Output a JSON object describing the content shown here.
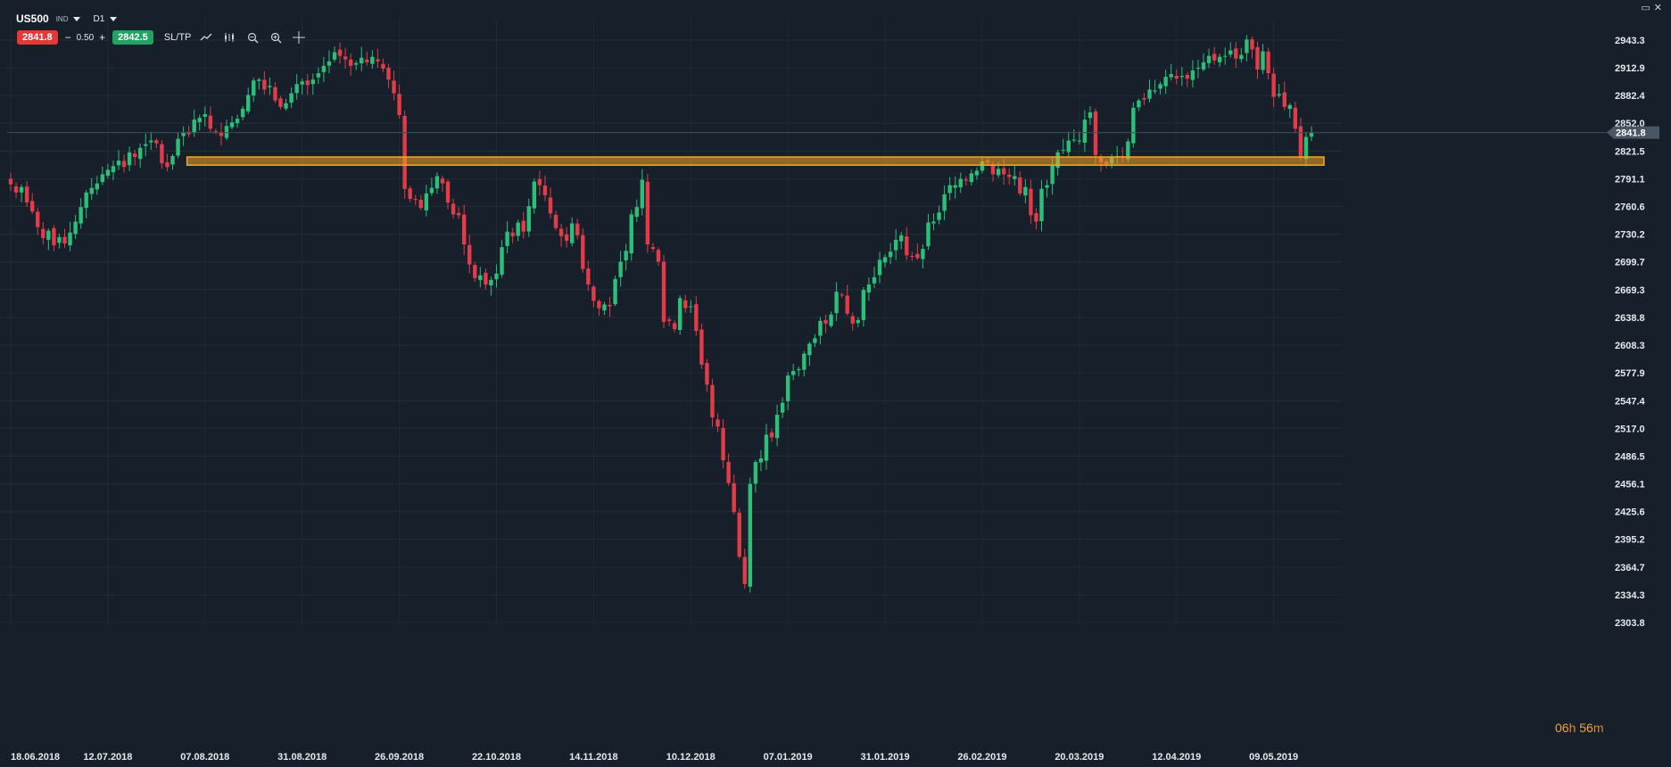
{
  "toolbar": {
    "symbol": "US500",
    "instrument_type": "IND",
    "timeframe": "D1",
    "sell_price": "2841.8",
    "spread_minus": "−",
    "spread": "0.50",
    "spread_plus": "+",
    "buy_price": "2842.5",
    "sltp_label": "SL/TP"
  },
  "colors": {
    "background": "#17202a",
    "bull": "#2bbf7a",
    "bear": "#e23b4a",
    "support_zone": "#f5a623",
    "price_label_bg": "#4a5663",
    "sell": "#e53935",
    "buy": "#1fa463"
  },
  "timer": {
    "hours": "06",
    "h": "h",
    "minutes": "56",
    "m": "m"
  },
  "chart_data": {
    "type": "candlestick",
    "symbol": "US500",
    "timeframe": "D1",
    "ylim": [
      2303.8,
      2960
    ],
    "y_ticks": [
      "2943.3",
      "2912.9",
      "2882.4",
      "2852.0",
      "2821.5",
      "2791.1",
      "2760.6",
      "2730.2",
      "2699.7",
      "2669.3",
      "2638.8",
      "2608.3",
      "2577.9",
      "2547.4",
      "2517.0",
      "2486.5",
      "2456.1",
      "2425.6",
      "2395.2",
      "2364.7",
      "2334.3",
      "2303.8"
    ],
    "x_ticks": [
      {
        "label": "18.06.2018",
        "index": 0
      },
      {
        "label": "12.07.2018",
        "index": 18
      },
      {
        "label": "07.08.2018",
        "index": 36
      },
      {
        "label": "31.08.2018",
        "index": 54
      },
      {
        "label": "26.09.2018",
        "index": 72
      },
      {
        "label": "22.10.2018",
        "index": 90
      },
      {
        "label": "14.11.2018",
        "index": 108
      },
      {
        "label": "10.12.2018",
        "index": 126
      },
      {
        "label": "07.01.2019",
        "index": 144
      },
      {
        "label": "31.01.2019",
        "index": 162
      },
      {
        "label": "26.02.2019",
        "index": 180
      },
      {
        "label": "20.03.2019",
        "index": 198
      },
      {
        "label": "12.04.2019",
        "index": 216
      },
      {
        "label": "09.05.2019",
        "index": 234
      }
    ],
    "current_price": "2841.8",
    "support_zone": [
      2806,
      2815
    ],
    "zone_start_index": 33,
    "series": [
      2785,
      2776,
      2782,
      2765,
      2755,
      2738,
      2726,
      2734,
      2718,
      2727,
      2720,
      2732,
      2744,
      2760,
      2776,
      2781,
      2786,
      2796,
      2801,
      2805,
      2811,
      2804,
      2820,
      2815,
      2825,
      2829,
      2833,
      2830,
      2808,
      2804,
      2816,
      2835,
      2842,
      2840,
      2856,
      2858,
      2862,
      2846,
      2842,
      2838,
      2849,
      2853,
      2857,
      2868,
      2883,
      2899,
      2900,
      2889,
      2893,
      2877,
      2870,
      2874,
      2885,
      2895,
      2898,
      2894,
      2900,
      2907,
      2915,
      2920,
      2930,
      2926,
      2922,
      2915,
      2918,
      2924,
      2919,
      2925,
      2920,
      2912,
      2900,
      2885,
      2861,
      2780,
      2769,
      2768,
      2759,
      2775,
      2781,
      2794,
      2786,
      2765,
      2752,
      2751,
      2719,
      2697,
      2682,
      2685,
      2675,
      2680,
      2687,
      2716,
      2733,
      2728,
      2743,
      2733,
      2761,
      2788,
      2784,
      2773,
      2753,
      2737,
      2728,
      2723,
      2742,
      2729,
      2692,
      2675,
      2657,
      2649,
      2653,
      2651,
      2681,
      2700,
      2712,
      2752,
      2760,
      2790,
      2719,
      2714,
      2700,
      2634,
      2635,
      2626,
      2660,
      2649,
      2651,
      2624,
      2587,
      2565,
      2529,
      2519,
      2482,
      2457,
      2425,
      2376,
      2346,
      2456,
      2480,
      2484,
      2510,
      2507,
      2532,
      2545,
      2575,
      2580,
      2582,
      2599,
      2610,
      2616,
      2635,
      2632,
      2642,
      2667,
      2664,
      2643,
      2632,
      2636,
      2669,
      2675,
      2683,
      2702,
      2705,
      2711,
      2724,
      2729,
      2707,
      2706,
      2704,
      2714,
      2743,
      2744,
      2754,
      2774,
      2784,
      2784,
      2791,
      2789,
      2797,
      2800,
      2810,
      2809,
      2796,
      2802,
      2796,
      2793,
      2794,
      2775,
      2782,
      2751,
      2744,
      2780,
      2784,
      2806,
      2820,
      2823,
      2833,
      2834,
      2833,
      2856,
      2864,
      2817,
      2809,
      2807,
      2815,
      2816,
      2814,
      2832,
      2869,
      2877,
      2878,
      2889,
      2888,
      2895,
      2903,
      2906,
      2901,
      2904,
      2901,
      2910,
      2913,
      2919,
      2926,
      2921,
      2925,
      2926,
      2932,
      2923,
      2927,
      2944,
      2933,
      2911,
      2931,
      2907,
      2881,
      2884,
      2870,
      2872,
      2846,
      2814,
      2837,
      2841.8
    ]
  }
}
